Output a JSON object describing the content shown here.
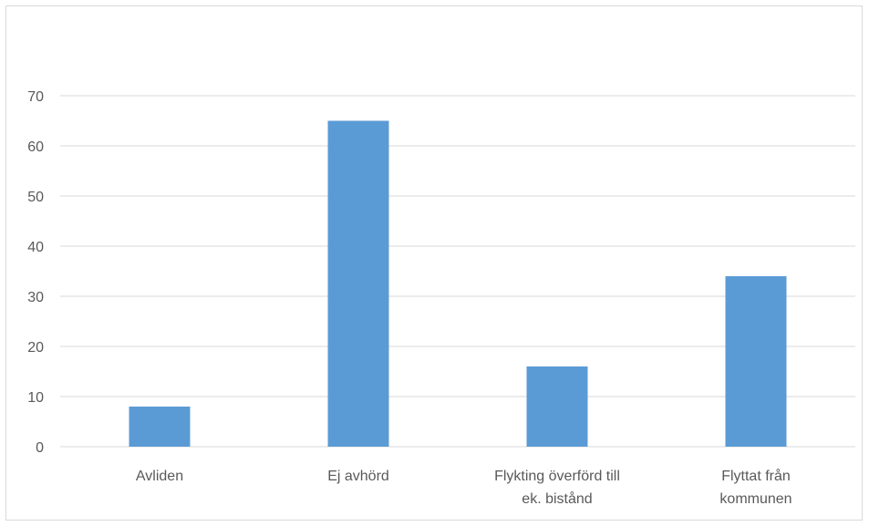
{
  "chart_data": {
    "type": "bar",
    "categories": [
      [
        "Avliden"
      ],
      [
        "Ej avhörd"
      ],
      [
        "Flykting överförd till",
        "ek. bistånd"
      ],
      [
        "Flyttat från",
        "kommunen"
      ]
    ],
    "values": [
      8,
      65,
      16,
      34
    ],
    "ylim": [
      0,
      70
    ],
    "yticks": [
      0,
      10,
      20,
      30,
      40,
      50,
      60,
      70
    ],
    "grid": true,
    "bar_color": "#5b9bd5",
    "grid_color": "#d9d9d9",
    "text_color": "#595959"
  }
}
